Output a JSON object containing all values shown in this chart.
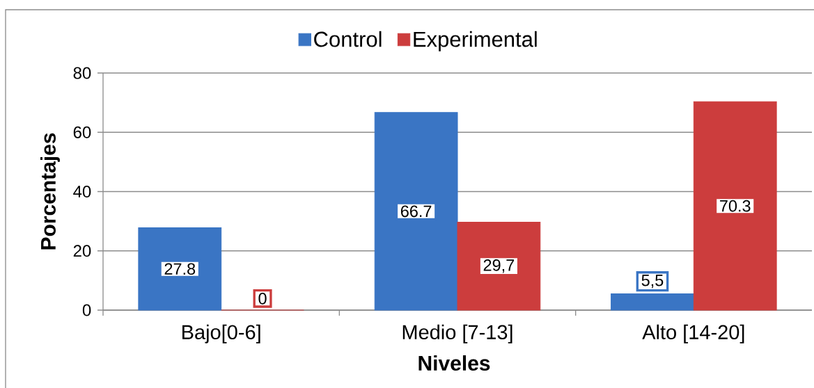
{
  "chart_data": {
    "type": "bar",
    "xlabel": "Niveles",
    "ylabel": "Porcentajes",
    "categories": [
      "Bajo[0-6]",
      "Medio [7-13]",
      "Alto [14-20]"
    ],
    "series": [
      {
        "name": "Control",
        "color": "#3a75c4",
        "values": [
          27.8,
          66.7,
          5.5
        ],
        "value_labels": [
          "27.8",
          "66.7",
          "5,5"
        ]
      },
      {
        "name": "Experimental",
        "color": "#cc3d3d",
        "values": [
          0,
          29.7,
          70.3
        ],
        "value_labels": [
          "0",
          "29,7",
          "70.3"
        ]
      }
    ],
    "ylim": [
      0,
      80
    ],
    "yticks": [
      0,
      20,
      40,
      60,
      80
    ],
    "grid": "y",
    "legend": "top"
  }
}
